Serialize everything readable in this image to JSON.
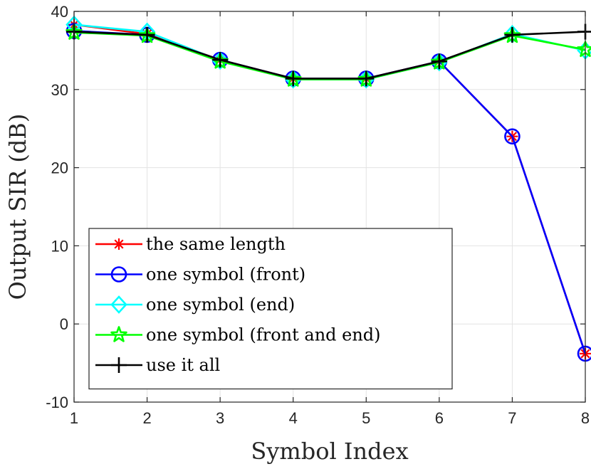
{
  "chart_data": {
    "type": "line",
    "title": "",
    "xlabel": "Symbol Index",
    "ylabel": "Output SIR (dB)",
    "xlim": [
      1,
      8
    ],
    "ylim": [
      -10,
      40
    ],
    "xticks": [
      "1",
      "2",
      "3",
      "4",
      "5",
      "6",
      "7",
      "8"
    ],
    "yticks": [
      "-10",
      "0",
      "10",
      "20",
      "30",
      "40"
    ],
    "grid": true,
    "legend_position": "bottom-left",
    "x": [
      1,
      2,
      3,
      4,
      5,
      6,
      7,
      8
    ],
    "series": [
      {
        "name": "the same length",
        "color": "#ff0000",
        "marker": "asterisk",
        "values": [
          38.3,
          37.1,
          33.8,
          31.4,
          31.4,
          33.6,
          24.0,
          -3.8
        ]
      },
      {
        "name": "one symbol (front)",
        "color": "#0000ff",
        "marker": "circle",
        "values": [
          37.5,
          37.0,
          33.8,
          31.4,
          31.4,
          33.6,
          24.0,
          -3.8
        ]
      },
      {
        "name": "one symbol (end)",
        "color": "#00ffff",
        "marker": "diamond",
        "values": [
          38.3,
          37.4,
          33.7,
          31.3,
          31.3,
          33.5,
          37.1,
          35.0
        ]
      },
      {
        "name": "one symbol (front and end)",
        "color": "#00ff00",
        "marker": "star",
        "values": [
          37.3,
          36.9,
          33.6,
          31.3,
          31.3,
          33.5,
          36.9,
          35.1
        ]
      },
      {
        "name": "use it all",
        "color": "#000000",
        "marker": "plus",
        "values": [
          37.4,
          37.0,
          33.8,
          31.4,
          31.4,
          33.6,
          37.0,
          37.4
        ]
      }
    ]
  }
}
